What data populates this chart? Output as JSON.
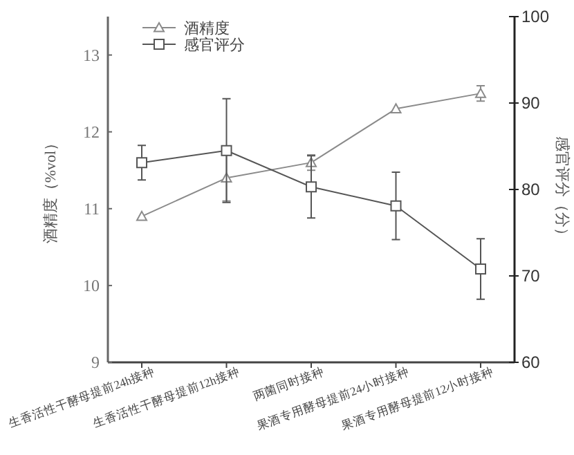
{
  "chart_data": {
    "type": "line",
    "ylabel": "酒精度（%vol）",
    "y2label": "感官评分（分）",
    "categories": [
      "生香活性干酵母提前24h接种",
      "生香活性干酵母提前12h接种",
      "两菌同时接种",
      "果酒专用酵母提前24小时接种",
      "果酒专用酵母提前12小时接种"
    ],
    "series": [
      {
        "name": "酒精度",
        "color": "#8a8a8a",
        "marker": "triangle",
        "values": [
          10.9,
          11.4,
          11.6,
          12.3,
          12.5
        ],
        "errors": [
          null,
          0.3,
          0.1,
          null,
          0.1
        ]
      },
      {
        "name": "感官评分",
        "color": "#555555",
        "marker": "square",
        "axis": "y2",
        "values": [
          83.1,
          84.5,
          80.3,
          78.1,
          70.8
        ],
        "errors": [
          2,
          6,
          3.6,
          3.9,
          3.5
        ]
      }
    ],
    "ylim": [
      9,
      13.5
    ],
    "yticks": [
      9,
      10,
      11,
      12,
      13
    ],
    "y2lim": [
      60,
      100
    ],
    "y2ticks": [
      60,
      70,
      80,
      90,
      100
    ],
    "legend": "top left",
    "grid": false
  }
}
